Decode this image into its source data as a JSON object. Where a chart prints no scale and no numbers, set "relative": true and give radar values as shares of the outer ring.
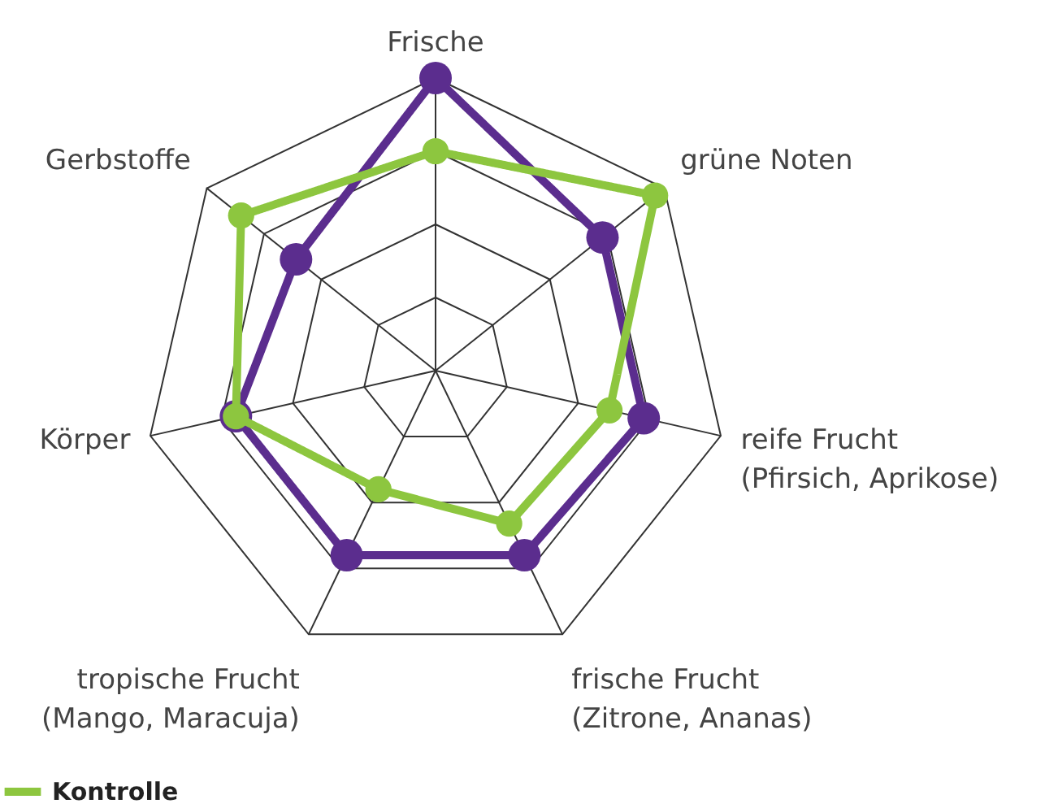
{
  "chart_data": {
    "type": "radar",
    "relative": true,
    "grid": true,
    "legend": "bottom left",
    "marker": "circle",
    "line_style": "solid",
    "categories": [
      "Frische",
      "grüne Noten",
      "reife Frucht\n(Pfirsich, Aprikose)",
      "frische Frucht\n(Zitrone, Ananas)",
      "tropische Frucht\n(Mango, Maracuja)",
      "Körper",
      "Gerbstoffe"
    ],
    "series": [
      {
        "name": "Kontrolle",
        "color": "#8dc63f",
        "values": [
          0.75,
          0.96,
          0.61,
          0.58,
          0.45,
          0.7,
          0.85
        ]
      },
      {
        "color": "#5b2d8e",
        "values": [
          1.0,
          0.73,
          0.73,
          0.7,
          0.7,
          0.7,
          0.61
        ]
      }
    ]
  }
}
